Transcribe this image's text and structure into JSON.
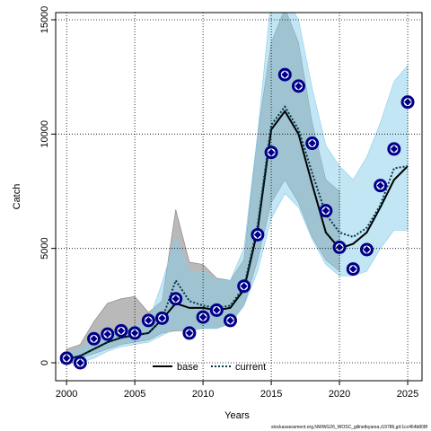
{
  "chart_data": {
    "type": "line",
    "xlabel": "Years",
    "ylabel": "Catch",
    "footer": "stockassessment.org,NWWG26_WOSC_gillnetbyarea,r19786,git:1cc464b808f",
    "xlim": [
      1999.2,
      2026.05
    ],
    "ylim": [
      -785,
      15314
    ],
    "xticks": [
      2000,
      2005,
      2010,
      2015,
      2020,
      2025
    ],
    "yticks": [
      0,
      5000,
      10000,
      15000
    ],
    "grid": true,
    "legend": "bottom",
    "x": [
      2000,
      2001,
      2002,
      2003,
      2004,
      2005,
      2006,
      2007,
      2008,
      2009,
      2010,
      2011,
      2012,
      2013,
      2014,
      2015,
      2016,
      2017,
      2018,
      2019,
      2020,
      2021,
      2022,
      2023,
      2024,
      2025
    ],
    "series": [
      {
        "name": "base",
        "color": "#000000",
        "dash": "solid",
        "band_color": "#808080",
        "values": [
          150,
          300,
          600,
          900,
          1100,
          1200,
          1300,
          1900,
          2600,
          2400,
          2400,
          2300,
          2400,
          3200,
          5800,
          10200,
          11000,
          10000,
          7800,
          5700,
          5000,
          5200,
          5700,
          6800,
          8000,
          8600
        ],
        "upper": [
          600,
          800,
          1800,
          2600,
          2800,
          2900,
          2200,
          2700,
          6700,
          4400,
          4300,
          3700,
          3600,
          4500,
          10000,
          14000,
          15500,
          14000,
          10500,
          8000,
          7500,
          null,
          null,
          null,
          null,
          null
        ],
        "lower": [
          100,
          200,
          400,
          600,
          800,
          900,
          1000,
          1300,
          1400,
          1400,
          1500,
          1500,
          1700,
          2500,
          4500,
          7000,
          8000,
          7000,
          5500,
          4500,
          4000,
          null,
          null,
          null,
          null,
          null
        ]
      },
      {
        "name": "current",
        "color": "#00384d",
        "dash": "dotted",
        "band_color": "#87ceeb",
        "values": [
          150,
          300,
          600,
          900,
          1100,
          1200,
          1300,
          1900,
          3600,
          2700,
          2500,
          2400,
          2500,
          3300,
          6000,
          10400,
          11200,
          10200,
          8300,
          6500,
          5700,
          5500,
          5900,
          6900,
          8500,
          8600
        ],
        "upper": [
          400,
          600,
          1000,
          1300,
          1500,
          1600,
          1800,
          3500,
          5500,
          4000,
          4000,
          3600,
          3600,
          5000,
          10000,
          16000,
          16000,
          15000,
          12000,
          9500,
          8600,
          8000,
          9000,
          10500,
          12300,
          13000
        ],
        "lower": [
          0,
          0,
          200,
          500,
          700,
          800,
          900,
          1200,
          1500,
          1400,
          1500,
          1500,
          1700,
          2500,
          4000,
          6300,
          7400,
          6800,
          5400,
          4300,
          3800,
          3800,
          4000,
          5000,
          5800,
          5800
        ]
      }
    ],
    "points": {
      "color": "#00008b",
      "values": [
        200,
        0,
        1050,
        1250,
        1400,
        1300,
        1850,
        1950,
        2800,
        1300,
        2000,
        2300,
        1850,
        3350,
        5600,
        9200,
        12600,
        12100,
        9600,
        6650,
        5050,
        4100,
        4950,
        7750,
        9350,
        11400
      ]
    }
  }
}
